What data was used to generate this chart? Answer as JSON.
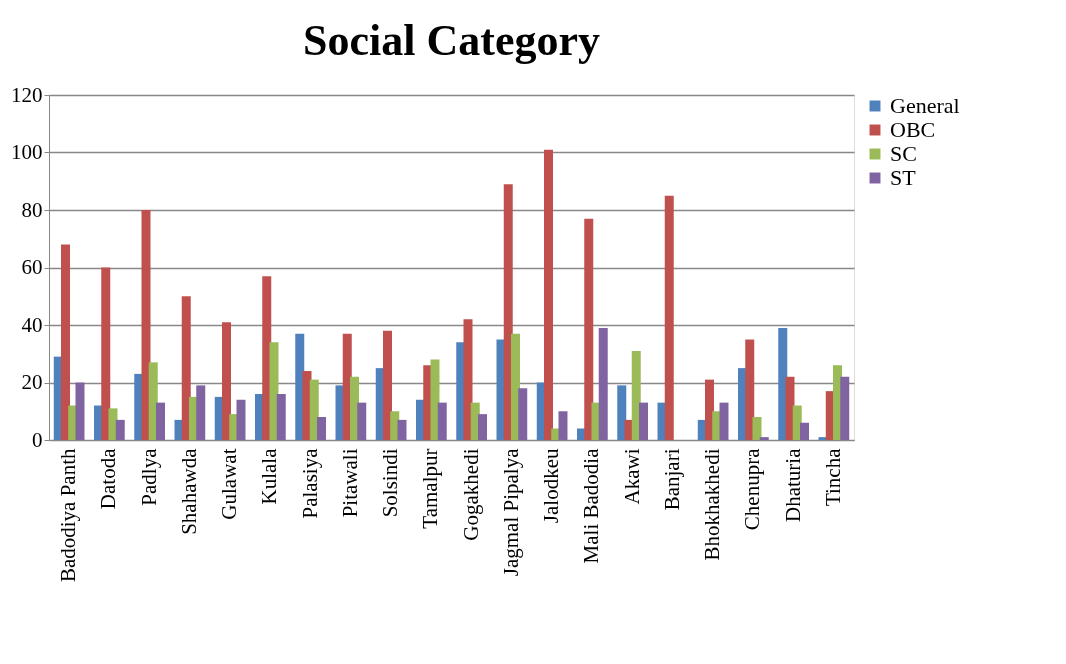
{
  "chart_data": {
    "type": "bar",
    "title": "Social Category",
    "categories": [
      "Badodiya Panth",
      "Datoda",
      "Padlya",
      "Shahawda",
      "Gulawat",
      "Kulala",
      "Palasiya",
      "Pitawali",
      "Solsindi",
      "Tamalpur",
      "Gogakhedi",
      "Jagmal Pipalya",
      "Jalodkeu",
      "Mali Badodia",
      "Akawi",
      "Banjari",
      "Bhokhakhedi",
      "Chenupra",
      "Dhaturia",
      "Tincha"
    ],
    "series": [
      {
        "name": "General",
        "color": "#4f81bd",
        "values": [
          29,
          12,
          23,
          7,
          15,
          16,
          37,
          19,
          25,
          14,
          34,
          35,
          20,
          4,
          19,
          13,
          7,
          25,
          39,
          1
        ]
      },
      {
        "name": "OBC",
        "color": "#c0504d",
        "values": [
          68,
          60,
          80,
          50,
          41,
          57,
          24,
          37,
          38,
          26,
          42,
          89,
          101,
          77,
          7,
          85,
          21,
          35,
          22,
          17
        ]
      },
      {
        "name": "SC",
        "color": "#9bbb59",
        "values": [
          12,
          11,
          27,
          15,
          9,
          34,
          21,
          22,
          10,
          28,
          13,
          37,
          4,
          13,
          31,
          0,
          10,
          8,
          12,
          26
        ]
      },
      {
        "name": "ST",
        "color": "#8064a2",
        "values": [
          20,
          7,
          13,
          19,
          14,
          16,
          8,
          13,
          7,
          13,
          9,
          18,
          10,
          39,
          13,
          0,
          13,
          1,
          6,
          22
        ]
      }
    ],
    "ylim": [
      0,
      120
    ],
    "yticks": [
      0,
      20,
      40,
      60,
      80,
      100,
      120
    ],
    "grid": "y",
    "legend": "right"
  }
}
